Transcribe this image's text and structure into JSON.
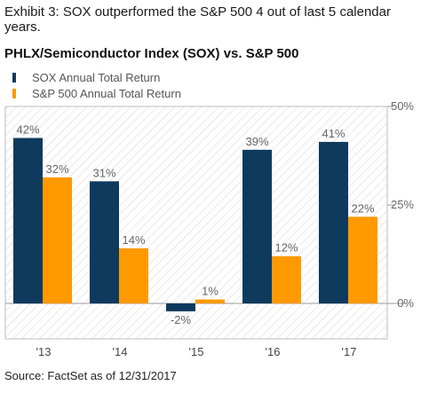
{
  "exhibit_title": "Exhibit 3: SOX outperformed the S&P 500 4 out of last 5 calendar years.",
  "source": "Source: FactSet as of 12/31/2017",
  "colors": {
    "sox": "#0e3a5e",
    "sp500": "#ff9900",
    "label": "#666666",
    "frame": "#bdbdbd",
    "hatch": "#dcdcdc"
  },
  "chart_data": {
    "type": "bar",
    "title": "PHLX/Semiconductor Index (SOX) vs. S&P 500",
    "categories": [
      "'13",
      "'14",
      "'15",
      "'16",
      "'17"
    ],
    "series": [
      {
        "name": "SOX Annual Total Return",
        "values": [
          42,
          31,
          -2,
          39,
          41
        ],
        "labels": [
          "42%",
          "31%",
          "-2%",
          "39%",
          "41%"
        ]
      },
      {
        "name": "S&P 500 Annual Total Return",
        "values": [
          32,
          14,
          1,
          12,
          22
        ],
        "labels": [
          "32%",
          "14%",
          "1%",
          "12%",
          "22%"
        ]
      }
    ],
    "ylim": [
      -9,
      50
    ],
    "yticks": [
      0,
      25,
      50
    ],
    "ytick_labels": [
      "0%",
      "25%",
      "50%"
    ],
    "y_axis_side": "right",
    "legend_position": "top-left",
    "background": "diagonal-hatch"
  }
}
